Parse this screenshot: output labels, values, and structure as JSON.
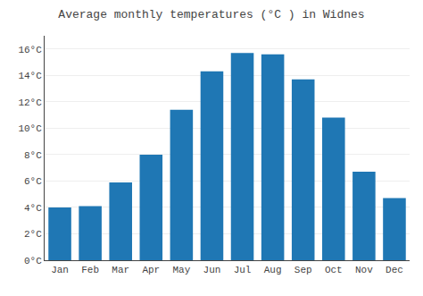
{
  "chart_data": {
    "type": "bar",
    "title": "Average monthly temperatures (°C ) in Widnes",
    "categories": [
      "Jan",
      "Feb",
      "Mar",
      "Apr",
      "May",
      "Jun",
      "Jul",
      "Aug",
      "Sep",
      "Oct",
      "Nov",
      "Dec"
    ],
    "values": [
      4.0,
      4.1,
      5.9,
      8.0,
      11.4,
      14.3,
      15.7,
      15.6,
      13.7,
      10.8,
      6.7,
      4.7
    ],
    "ylim": [
      0,
      17
    ],
    "yticks": [
      {
        "value": 0,
        "label": "0°C"
      },
      {
        "value": 2,
        "label": "2°C"
      },
      {
        "value": 4,
        "label": "4°C"
      },
      {
        "value": 6,
        "label": "6°C"
      },
      {
        "value": 8,
        "label": "8°C"
      },
      {
        "value": 10,
        "label": "10°C"
      },
      {
        "value": 12,
        "label": "12°C"
      },
      {
        "value": 14,
        "label": "14°C"
      },
      {
        "value": 16,
        "label": "16°C"
      }
    ],
    "grid": true
  }
}
